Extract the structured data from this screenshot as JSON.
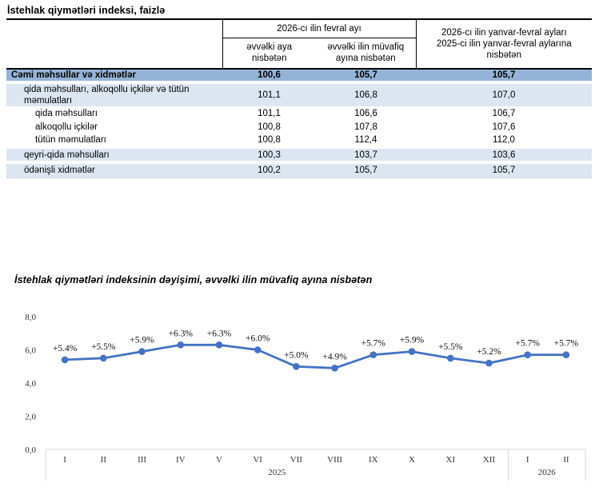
{
  "colors": {
    "accent": "#4472C4",
    "row_total": "#95B3D7",
    "row_light": "#DCE6F1",
    "axis_line": "#D6D6D6",
    "chart_text": "#333333"
  },
  "table": {
    "title": "İstehlak qiymətləri indeksi, faizlə",
    "group_header": "2026-cı ilin fevral ayı",
    "col2_header": "əvvəlki aya nisbətən",
    "col3_header": "əvvəlki ilin müvafiq ayına nisbətən",
    "col4_header_line1": "2026-cı ilin yanvar-fevral ayları",
    "col4_header_line2": "2025-ci ilin yanvar-fevral aylarına nisbətən",
    "rows": [
      {
        "label": "Cəmi məhsullar və xidmətlər",
        "indent": 0,
        "style": "total",
        "gap_above": false,
        "values": [
          "100,6",
          "105,7",
          "105,7"
        ]
      },
      {
        "label": "qida məhsulları, alkoqollu içkilər və tütün məmulatları",
        "indent": 1,
        "style": "light r-group",
        "gap_above": true,
        "values": [
          "101,1",
          "106,8",
          "107,0"
        ]
      },
      {
        "label": "qida məhsulları",
        "indent": 2,
        "style": "white r-sub",
        "gap_above": false,
        "values": [
          "101,1",
          "106,6",
          "106,7"
        ]
      },
      {
        "label": "alkoqollu içkilər",
        "indent": 2,
        "style": "white r-sub",
        "gap_above": false,
        "values": [
          "100,8",
          "107,8",
          "107,6"
        ]
      },
      {
        "label": "tütün məmulatları",
        "indent": 2,
        "style": "white r-sub",
        "gap_above": false,
        "values": [
          "100,8",
          "112,4",
          "112,0"
        ]
      },
      {
        "label": "qeyri-qida məhsulları",
        "indent": 1,
        "style": "light r-cat",
        "gap_above": true,
        "values": [
          "100,3",
          "103,7",
          "103,6"
        ]
      },
      {
        "label": "ödənişli xidmətlər",
        "indent": 1,
        "style": "light r-cat",
        "gap_above": true,
        "values": [
          "100,2",
          "105,7",
          "105,7"
        ]
      }
    ]
  },
  "chart_data": {
    "type": "line",
    "title": "İstehlak qiymətləri indeksinin dəyişimi, əvvəlki ilin müvafiq ayına nisbətən",
    "categories": [
      "I",
      "II",
      "III",
      "IV",
      "V",
      "VI",
      "VII",
      "VIII",
      "IX",
      "X",
      "XI",
      "XII",
      "I",
      "II"
    ],
    "year_groups": [
      {
        "label": "2025",
        "count": 12
      },
      {
        "label": "2026",
        "count": 2
      }
    ],
    "values": [
      5.4,
      5.5,
      5.9,
      6.3,
      6.3,
      6.0,
      5.0,
      4.9,
      5.7,
      5.9,
      5.5,
      5.2,
      5.7,
      5.7
    ],
    "point_labels": [
      "+5.4%",
      "+5.5%",
      "+5.9%",
      "+6.3%",
      "+6.3%",
      "+6.0%",
      "+5.0%",
      "+4.9%",
      "+5.7%",
      "+5.9%",
      "+5.5%",
      "+5.2%",
      "+5.7%",
      "+5.7%"
    ],
    "ylim": [
      0,
      8
    ],
    "yticks": [
      "0,0",
      "2,0",
      "4,0",
      "6,0",
      "8,0"
    ],
    "ytick_values": [
      0,
      2,
      4,
      6,
      8
    ],
    "grid": false,
    "legend": false,
    "line_color": "#4472C4"
  }
}
